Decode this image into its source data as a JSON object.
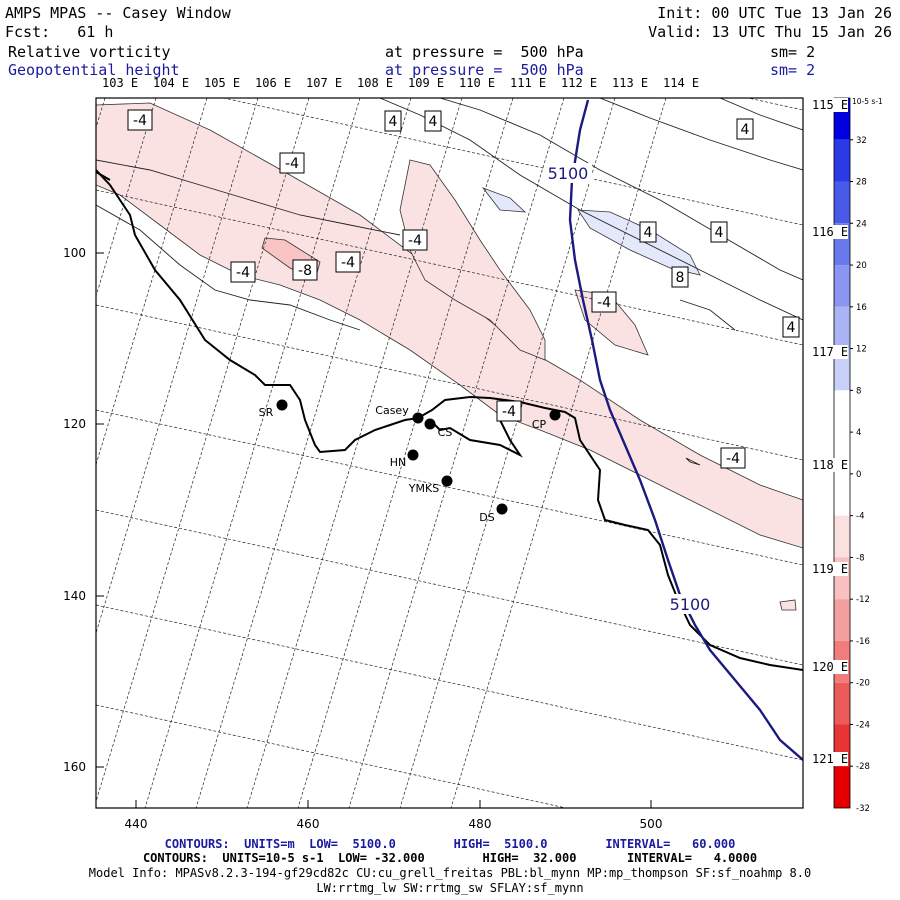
{
  "header": {
    "title": "AMPS MPAS -- Casey Window",
    "forecast": "Fcst:   61 h",
    "init": "Init: 00 UTC Tue 13 Jan 26",
    "valid": "Valid: 13 UTC Thu 15 Jan 26",
    "field1": {
      "name": "Relative vorticity",
      "level": "at pressure =  500 hPa",
      "smooth": "sm= 2"
    },
    "field2": {
      "name": "Geopotential height",
      "level": "at pressure =  500 hPa",
      "smooth": "sm= 2"
    }
  },
  "map": {
    "top_lon_labels": [
      "103 E",
      "104 E",
      "105 E",
      "106 E",
      "107 E",
      "108 E",
      "109 E",
      "110 E",
      "111 E",
      "112 E",
      "113 E",
      "114 E"
    ],
    "right_lon_labels": [
      "115 E",
      "116 E",
      "117 E",
      "118 E",
      "119 E",
      "120 E",
      "121 E"
    ],
    "x_ticks": [
      "440",
      "460",
      "480",
      "500"
    ],
    "y_ticks": [
      "100",
      "120",
      "140",
      "160"
    ],
    "stations": [
      {
        "name": "SR"
      },
      {
        "name": "Casey"
      },
      {
        "name": "CS"
      },
      {
        "name": "HN"
      },
      {
        "name": "YMKS"
      },
      {
        "name": "DS"
      },
      {
        "name": "CP"
      }
    ],
    "vorticity_labels": [
      "-4",
      "-4",
      "-4",
      "-8",
      "-4",
      "-4",
      "-4",
      "-4",
      "-4",
      "4",
      "4",
      "4",
      "4",
      "4",
      "8",
      "4"
    ],
    "height_labels": [
      "5100",
      "5100"
    ]
  },
  "colorbar": {
    "unit": "10-5 s-1",
    "ticks": [
      "32",
      "28",
      "24",
      "20",
      "16",
      "12",
      "8",
      "4",
      "0",
      "-4",
      "-8",
      "-12",
      "-16",
      "-20",
      "-24",
      "-28",
      "-32"
    ],
    "colors": [
      "#0000e0",
      "#2a3ae6",
      "#4a5ae8",
      "#6a7aec",
      "#8a96f0",
      "#aab4f4",
      "#c8d0f8",
      "#ffffff",
      "#ffffff",
      "#ffffff",
      "#fbe0e0",
      "#f8c0c0",
      "#f4a0a0",
      "#f07c7c",
      "#ec5a5a",
      "#e83434",
      "#e40000"
    ]
  },
  "footer": {
    "contours_height": "CONTOURS:  UNITS=m  LOW=  5100.0        HIGH=  5100.0        INTERVAL=   60.000",
    "contours_vort": "CONTOURS:  UNITS=10-5 s-1  LOW= -32.000        HIGH=  32.000       INTERVAL=   4.0000",
    "model_info": "Model Info: MPASv8.2.3-194-gf29cd82c CU:cu_grell_freitas PBL:bl_mynn MP:mp_thompson SF:sf_noahmp 8.0",
    "model_info2": "LW:rrtmg_lw SW:rrtmg_sw SFLAY:sf_mynn"
  }
}
